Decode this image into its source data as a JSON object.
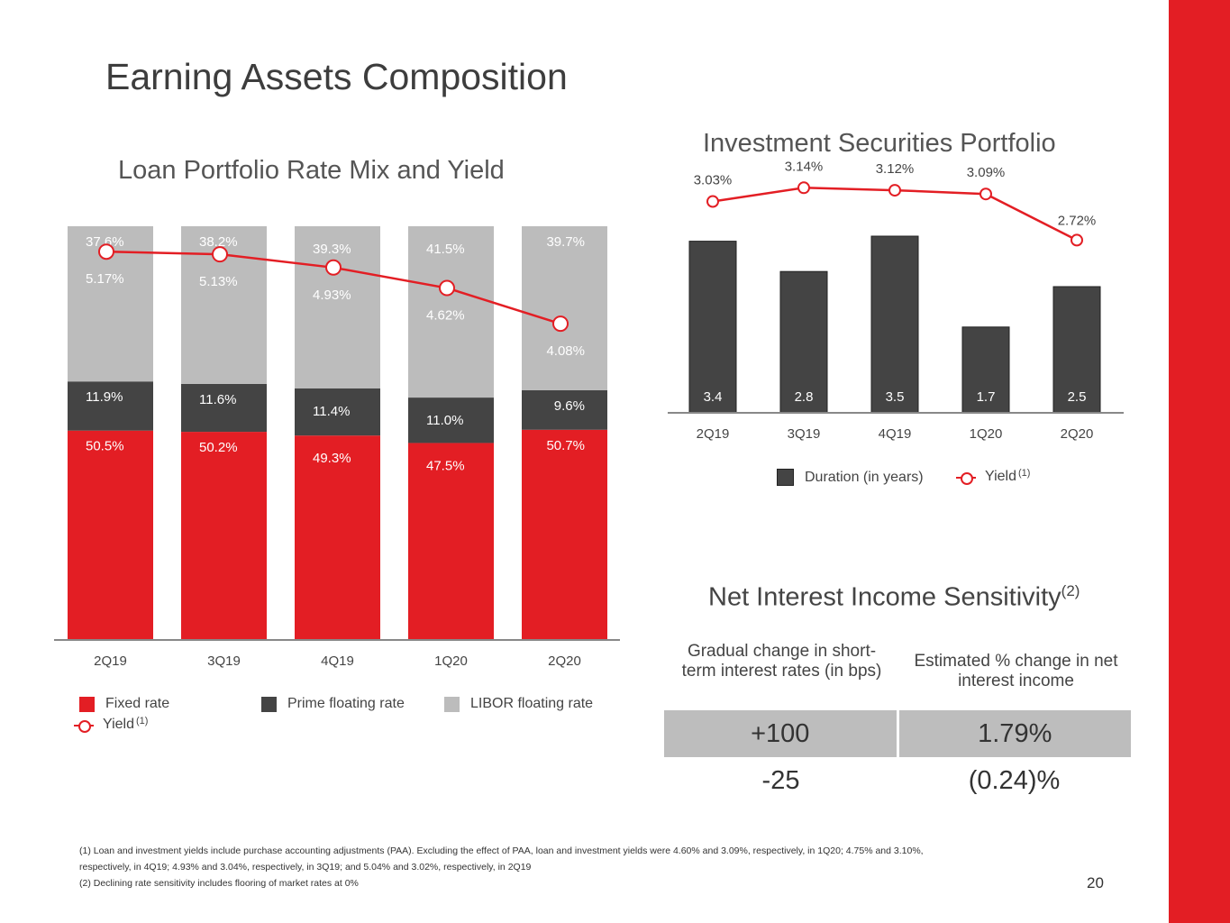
{
  "page": {
    "title": "Earning Assets Composition",
    "page_number": "20"
  },
  "loan_chart": {
    "subtitle": "Loan Portfolio Rate Mix and Yield",
    "legend": {
      "fixed": "Fixed rate",
      "prime": "Prime floating rate",
      "libor": "LIBOR floating rate",
      "yield": "Yield",
      "yield_note": "(1)"
    }
  },
  "investment_chart": {
    "subtitle": "Investment Securities Portfolio",
    "legend": {
      "duration": "Duration (in years)",
      "yield": "Yield",
      "yield_note": "(1)"
    }
  },
  "nii": {
    "title": "Net Interest Income Sensitivity",
    "title_note": "(2)",
    "header_left": "Gradual change in short-term interest rates (in bps)",
    "header_right": "Estimated % change in net interest income",
    "rows": [
      {
        "change": "+100",
        "pct": "1.79%"
      },
      {
        "change": "-25",
        "pct": "(0.24)%"
      }
    ]
  },
  "footnotes": [
    "(1) Loan and investment yields include purchase accounting adjustments (PAA). Excluding the effect of PAA, loan and investment yields were 4.60% and 3.09%, respectively, in 1Q20; 4.75% and 3.10%,",
    "respectively, in 4Q19; 4.93% and 3.04%, respectively, in 3Q19; and 5.04% and 3.02%, respectively, in 2Q19",
    "(2) Declining rate sensitivity includes flooring of market rates at 0%"
  ],
  "colors": {
    "fixed": "#e31e24",
    "prime": "#444444",
    "libor": "#bcbcbc",
    "yield": "#e31e24",
    "duration": "#444444"
  },
  "chart_data": [
    {
      "type": "bar",
      "stacked": true,
      "title": "Loan Portfolio Rate Mix and Yield",
      "categories": [
        "2Q19",
        "3Q19",
        "4Q19",
        "1Q20",
        "2Q20"
      ],
      "series": [
        {
          "name": "Fixed rate",
          "values": [
            50.5,
            50.2,
            49.3,
            47.5,
            50.7
          ],
          "labels": [
            "50.5%",
            "50.2%",
            "49.3%",
            "47.5%",
            "50.7%"
          ]
        },
        {
          "name": "Prime floating rate",
          "values": [
            11.9,
            11.6,
            11.4,
            11.0,
            9.6
          ],
          "labels": [
            "11.9%",
            "11.6%",
            "11.4%",
            "11.0%",
            "9.6%"
          ]
        },
        {
          "name": "LIBOR floating rate",
          "values": [
            37.6,
            38.2,
            39.3,
            41.5,
            39.7
          ],
          "labels": [
            "37.6%",
            "38.2%",
            "39.3%",
            "41.5%",
            "39.7%"
          ]
        },
        {
          "name": "Yield",
          "type": "line",
          "values": [
            5.17,
            5.13,
            4.93,
            4.62,
            4.08
          ],
          "labels": [
            "5.17%",
            "5.13%",
            "4.93%",
            "4.62%",
            "4.08%"
          ]
        }
      ],
      "ylim": [
        0,
        100
      ],
      "legend": "bottom"
    },
    {
      "type": "bar",
      "title": "Investment Securities Portfolio",
      "categories": [
        "2Q19",
        "3Q19",
        "4Q19",
        "1Q20",
        "2Q20"
      ],
      "series": [
        {
          "name": "Duration (in years)",
          "values": [
            3.4,
            2.8,
            3.5,
            1.7,
            2.5
          ],
          "labels": [
            "3.4",
            "2.8",
            "3.5",
            "1.7",
            "2.5"
          ]
        },
        {
          "name": "Yield",
          "type": "line",
          "values": [
            3.03,
            3.14,
            3.12,
            3.09,
            2.72
          ],
          "labels": [
            "3.03%",
            "3.14%",
            "3.12%",
            "3.09%",
            "2.72%"
          ]
        }
      ],
      "legend": "bottom"
    }
  ]
}
